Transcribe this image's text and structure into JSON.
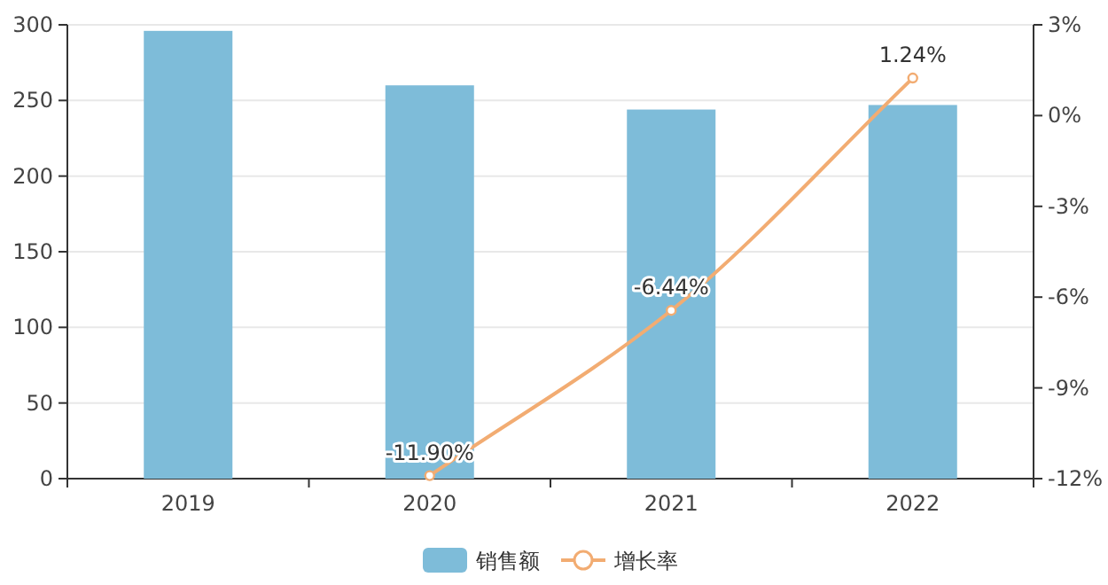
{
  "chart_data": {
    "type": "bar",
    "categories": [
      "2019",
      "2020",
      "2021",
      "2022"
    ],
    "series": [
      {
        "name": "销售额",
        "color": "#7ebcd9",
        "values": [
          296,
          260,
          244,
          247
        ]
      },
      {
        "name": "增长率",
        "type": "line",
        "axis": "y2",
        "color": "#f2ac72",
        "values": [
          null,
          -11.9,
          -6.44,
          1.24
        ],
        "value_labels": [
          null,
          "-11.90%",
          "-6.44%",
          "1.24%"
        ]
      }
    ],
    "ylim": [
      0,
      300
    ],
    "yticks": [
      0,
      50,
      100,
      150,
      200,
      250,
      300
    ],
    "y2lim": [
      -12,
      3
    ],
    "y2ticks": [
      {
        "value": -12,
        "label": "-12%"
      },
      {
        "value": -9,
        "label": "-9%"
      },
      {
        "value": -6,
        "label": "-6%"
      },
      {
        "value": -3,
        "label": "-3%"
      },
      {
        "value": 0,
        "label": "0%"
      },
      {
        "value": 3,
        "label": "3%"
      }
    ],
    "grid": "y",
    "legend": "bottom",
    "marker": "circle"
  }
}
